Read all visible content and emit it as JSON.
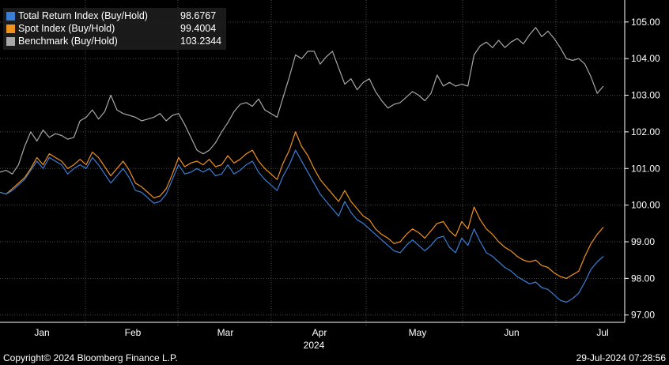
{
  "legend": [
    {
      "name": "Total Return Index (Buy/Hold)",
      "value": "98.6767",
      "color": "#3a7fd5"
    },
    {
      "name": "Spot Index (Buy/Hold)",
      "value": "99.4004",
      "color": "#f0921e"
    },
    {
      "name": "Benchmark (Buy/Hold)",
      "value": "103.2344",
      "color": "#a8a8a8"
    }
  ],
  "footer": {
    "copyright": "Copyright© 2024 Bloomberg Finance L.P.",
    "timestamp": "29-Jul-2024 07:28:56"
  },
  "chart_data": {
    "type": "line",
    "x_ticks": [
      "Jan",
      "Feb",
      "Mar",
      "Apr",
      "May",
      "Jun",
      "Jul"
    ],
    "x_year_label": "2024",
    "y_ticks": [
      "97.00",
      "98.00",
      "99.00",
      "100.00",
      "101.00",
      "102.00",
      "103.00",
      "104.00",
      "105.00"
    ],
    "ylim": [
      96.8,
      105.6
    ],
    "grid": true,
    "series": [
      {
        "name": "Total Return Index (Buy/Hold)",
        "color": "#3a7fd5",
        "values": [
          100.35,
          100.3,
          100.4,
          100.55,
          100.7,
          100.95,
          101.2,
          101.0,
          101.3,
          101.2,
          101.1,
          100.85,
          101.0,
          101.1,
          101.0,
          101.3,
          101.1,
          100.85,
          100.6,
          100.8,
          101.0,
          100.75,
          100.4,
          100.35,
          100.2,
          100.05,
          100.1,
          100.3,
          100.7,
          101.1,
          100.85,
          100.9,
          101.0,
          100.9,
          101.0,
          100.8,
          100.85,
          101.1,
          100.85,
          100.95,
          101.1,
          101.2,
          100.9,
          100.7,
          100.55,
          100.4,
          100.8,
          101.1,
          101.5,
          101.2,
          100.9,
          100.6,
          100.3,
          100.1,
          99.9,
          99.7,
          100.1,
          99.8,
          99.6,
          99.5,
          99.35,
          99.2,
          99.05,
          98.9,
          98.75,
          98.7,
          98.9,
          99.05,
          98.9,
          98.75,
          98.9,
          99.1,
          99.15,
          98.85,
          98.7,
          99.1,
          98.9,
          99.35,
          99.0,
          98.7,
          98.6,
          98.45,
          98.3,
          98.2,
          98.05,
          97.95,
          97.85,
          97.9,
          97.75,
          97.7,
          97.55,
          97.4,
          97.35,
          97.45,
          97.6,
          97.9,
          98.25,
          98.45,
          98.6
        ]
      },
      {
        "name": "Spot Index (Buy/Hold)",
        "color": "#f0921e",
        "values": [
          100.35,
          100.3,
          100.45,
          100.6,
          100.75,
          101.0,
          101.3,
          101.1,
          101.4,
          101.3,
          101.2,
          101.0,
          101.1,
          101.25,
          101.1,
          101.45,
          101.3,
          101.05,
          100.8,
          101.0,
          101.2,
          100.95,
          100.6,
          100.5,
          100.35,
          100.2,
          100.25,
          100.45,
          100.85,
          101.3,
          101.05,
          101.15,
          101.2,
          101.1,
          101.25,
          101.05,
          101.1,
          101.35,
          101.15,
          101.25,
          101.4,
          101.5,
          101.2,
          101.0,
          100.85,
          100.7,
          101.15,
          101.5,
          102.0,
          101.6,
          101.35,
          101.0,
          100.7,
          100.5,
          100.3,
          100.1,
          100.4,
          100.1,
          99.9,
          99.7,
          99.6,
          99.35,
          99.2,
          99.1,
          98.95,
          99.0,
          99.2,
          99.35,
          99.25,
          99.1,
          99.3,
          99.5,
          99.55,
          99.3,
          99.15,
          99.55,
          99.35,
          99.95,
          99.6,
          99.35,
          99.2,
          99.0,
          98.85,
          98.75,
          98.6,
          98.5,
          98.45,
          98.5,
          98.35,
          98.3,
          98.15,
          98.05,
          98.0,
          98.1,
          98.2,
          98.6,
          98.95,
          99.2,
          99.4
        ]
      },
      {
        "name": "Benchmark (Buy/Hold)",
        "color": "#a8a8a8",
        "values": [
          100.9,
          100.95,
          100.85,
          101.1,
          101.6,
          102.0,
          101.75,
          102.05,
          101.85,
          101.95,
          101.9,
          101.8,
          101.85,
          102.3,
          102.4,
          102.6,
          102.35,
          102.55,
          103.0,
          102.6,
          102.5,
          102.45,
          102.4,
          102.3,
          102.35,
          102.4,
          102.5,
          102.3,
          102.45,
          102.5,
          102.2,
          101.85,
          101.5,
          101.4,
          101.5,
          101.7,
          102.0,
          102.25,
          102.55,
          102.75,
          102.8,
          102.7,
          102.9,
          102.6,
          102.5,
          102.4,
          102.95,
          103.5,
          104.1,
          104.0,
          104.2,
          104.2,
          103.85,
          104.05,
          104.2,
          103.75,
          103.3,
          103.45,
          103.15,
          103.35,
          103.45,
          103.1,
          102.85,
          102.65,
          102.75,
          102.8,
          102.95,
          103.1,
          103.0,
          102.85,
          103.05,
          103.55,
          103.25,
          103.35,
          103.25,
          103.3,
          103.25,
          104.1,
          104.35,
          104.45,
          104.3,
          104.5,
          104.3,
          104.45,
          104.55,
          104.4,
          104.65,
          104.85,
          104.6,
          104.75,
          104.55,
          104.3,
          104.0,
          103.95,
          104.0,
          103.85,
          103.5,
          103.05,
          103.25
        ]
      }
    ]
  }
}
